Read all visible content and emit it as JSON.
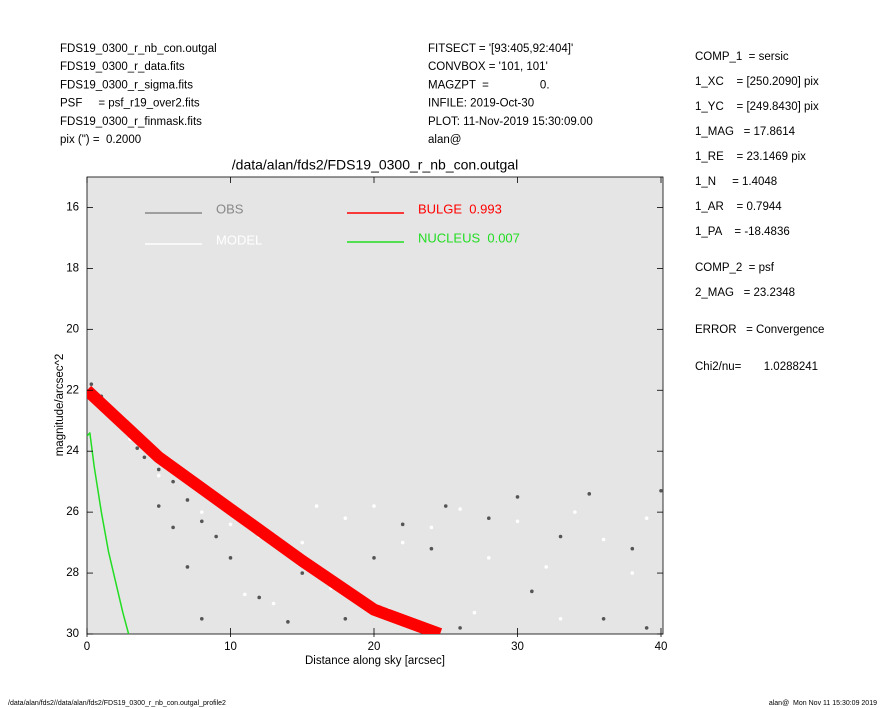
{
  "header": {
    "left": [
      "FDS19_0300_r_nb_con.outgal",
      "FDS19_0300_r_data.fits",
      "FDS19_0300_r_sigma.fits",
      "PSF     = psf_r19_over2.fits",
      "FDS19_0300_r_finmask.fits",
      "pix (\") =  0.2000"
    ],
    "center": [
      "FITSECT = '[93:405,92:404]'",
      "CONVBOX = '101, 101'",
      "MAGZPT  =                0.",
      "INFILE: 2019-Oct-30",
      "PLOT: 11-Nov-2019 15:30:09.00",
      "alan@"
    ],
    "right": [
      "COMP_1  = sersic",
      "1_XC    = [250.2090] pix",
      "1_YC    = [249.8430] pix",
      "1_MAG   = 17.8614",
      "1_RE    = 23.1469 pix",
      "1_N     = 1.4048",
      "1_AR    = 0.7944",
      "1_PA    = -18.4836",
      "COMP_2  = psf",
      "2_MAG   = 23.2348",
      "ERROR   = Convergence",
      "Chi2/nu=       1.0288241"
    ]
  },
  "footer": {
    "left": "/data/alan/fds2//data/alan/fds2/FDS19_0300_r_nb_con.outgal_profile2",
    "right": "alan@  Mon Nov 11 15:30:09 2019"
  },
  "chart_data": {
    "type": "scatter",
    "title": "/data/alan/fds2/FDS19_0300_r_nb_con.outgal",
    "x_label": "Distance along sky [arcsec]",
    "y_label": "magnitude/arcsec^2",
    "xlim": [
      0,
      40
    ],
    "ylim": [
      15,
      30
    ],
    "xticks": [
      0,
      10,
      20,
      30,
      40
    ],
    "yticks": [
      16,
      18,
      20,
      22,
      24,
      26,
      28,
      30
    ],
    "y_inverted": true,
    "series": [
      {
        "name": "OBS",
        "kind": "points",
        "color": "#555555",
        "legend_color": "#888888",
        "x": [
          0.3,
          1,
          2,
          3,
          3.5,
          4,
          5,
          6,
          7,
          8,
          9,
          10,
          6,
          7,
          8,
          5,
          12,
          14,
          15,
          18,
          20,
          22,
          25,
          28,
          30,
          33,
          35,
          38,
          40,
          36,
          26,
          31,
          24,
          39
        ],
        "values": [
          21.8,
          22.2,
          22.8,
          23.3,
          23.9,
          24.2,
          24.6,
          25,
          25.6,
          26.3,
          26.8,
          27.5,
          26.5,
          27.8,
          29.5,
          25.8,
          28.8,
          29.6,
          28,
          29.5,
          27.5,
          26.4,
          25.8,
          26.2,
          25.5,
          26.8,
          25.4,
          27.2,
          25.3,
          29.5,
          29.8,
          28.6,
          27.2,
          29.8
        ]
      },
      {
        "name": "MODEL",
        "kind": "points",
        "color": "#ffffff",
        "legend_color": "#ffffff",
        "x": [
          1,
          3,
          5,
          8,
          10,
          12,
          13,
          15,
          16,
          18,
          20,
          22,
          24,
          26,
          28,
          30,
          32,
          34,
          36,
          38,
          39,
          27,
          33,
          17,
          21,
          11
        ],
        "values": [
          22.3,
          23.6,
          24.8,
          26,
          26.4,
          26.8,
          29,
          27,
          25.8,
          26.2,
          25.8,
          27,
          26.5,
          25.9,
          27.5,
          26.3,
          27.8,
          26,
          26.9,
          28,
          26.2,
          29.3,
          29.5,
          28.5,
          29.2,
          28.7
        ]
      },
      {
        "name": "BULGE  0.993",
        "kind": "band",
        "color": "#ff0000",
        "legend_color": "#ff0000",
        "x": [
          0,
          5,
          10,
          15,
          20,
          24.6
        ],
        "values": [
          22,
          24.2,
          25.9,
          27.6,
          29.2,
          30
        ]
      },
      {
        "name": "NUCLEUS  0.007",
        "kind": "line",
        "color": "#22dd22",
        "legend_color": "#22dd22",
        "x": [
          0,
          0.2,
          0.5,
          1,
          1.5,
          2,
          2.5,
          2.9
        ],
        "values": [
          23.5,
          23.4,
          24.5,
          26,
          27.3,
          28.3,
          29.3,
          30
        ]
      }
    ]
  }
}
